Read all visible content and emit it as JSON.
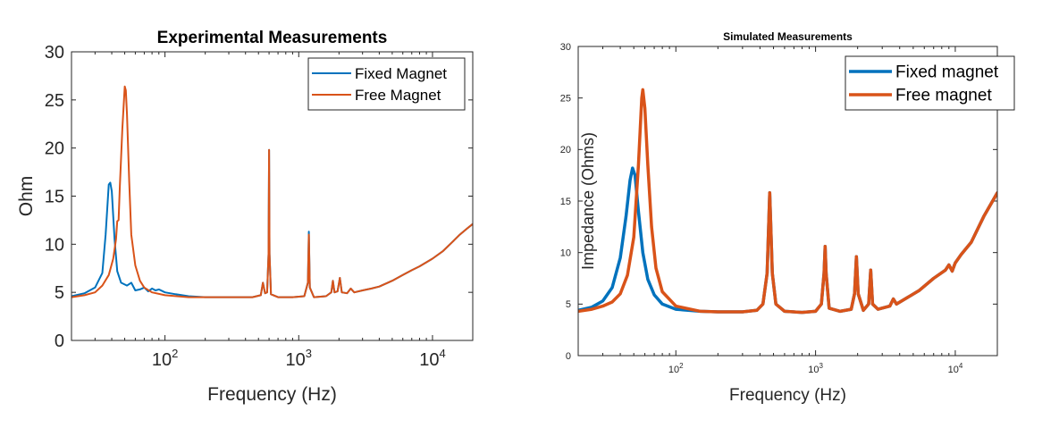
{
  "chart_data": [
    {
      "id": "experimental",
      "type": "line",
      "title": "Experimental Measurements",
      "xlabel": "Frequency (Hz)",
      "ylabel": "Ohm",
      "xscale": "log",
      "xlim": [
        20,
        20000
      ],
      "ylim": [
        0,
        30
      ],
      "yticks": [
        0,
        5,
        10,
        15,
        20,
        25,
        30
      ],
      "ytick_labels": [
        "0",
        "5",
        "10",
        "15",
        "20",
        "25",
        "30"
      ],
      "xticks": [
        100,
        1000,
        10000
      ],
      "xtick_base": [
        "10",
        "10",
        "10"
      ],
      "xtick_exp": [
        "2",
        "3",
        "4"
      ],
      "legend_position": "top-right",
      "series": [
        {
          "name": "Fixed Magnet",
          "color": "#0072BD",
          "points": [
            [
              20,
              4.6
            ],
            [
              25,
              4.9
            ],
            [
              30,
              5.5
            ],
            [
              34,
              7.0
            ],
            [
              36,
              11.0
            ],
            [
              38,
              16.2
            ],
            [
              39,
              16.4
            ],
            [
              40,
              15.5
            ],
            [
              42,
              10.5
            ],
            [
              44,
              7.2
            ],
            [
              47,
              6.0
            ],
            [
              52,
              5.7
            ],
            [
              56,
              6.0
            ],
            [
              60,
              5.2
            ],
            [
              65,
              5.3
            ],
            [
              70,
              5.5
            ],
            [
              75,
              5.1
            ],
            [
              80,
              5.4
            ],
            [
              85,
              5.2
            ],
            [
              90,
              5.3
            ],
            [
              100,
              5.0
            ],
            [
              120,
              4.8
            ],
            [
              150,
              4.6
            ],
            [
              200,
              4.5
            ],
            [
              300,
              4.5
            ],
            [
              450,
              4.5
            ],
            [
              520,
              4.7
            ],
            [
              540,
              6.0
            ],
            [
              560,
              4.9
            ],
            [
              580,
              5.0
            ],
            [
              595,
              9.0
            ],
            [
              600,
              19.8
            ],
            [
              605,
              9.0
            ],
            [
              620,
              4.8
            ],
            [
              700,
              4.5
            ],
            [
              900,
              4.5
            ],
            [
              1100,
              4.6
            ],
            [
              1170,
              6.0
            ],
            [
              1190,
              11.3
            ],
            [
              1210,
              5.5
            ],
            [
              1300,
              4.5
            ],
            [
              1600,
              4.6
            ],
            [
              1750,
              5.0
            ],
            [
              1800,
              6.2
            ],
            [
              1850,
              5.0
            ],
            [
              1950,
              5.1
            ],
            [
              2030,
              6.5
            ],
            [
              2100,
              5.0
            ],
            [
              2300,
              4.9
            ],
            [
              2450,
              5.4
            ],
            [
              2600,
              5.0
            ],
            [
              3000,
              5.2
            ],
            [
              3500,
              5.4
            ],
            [
              4000,
              5.6
            ],
            [
              5000,
              6.2
            ],
            [
              6000,
              6.8
            ],
            [
              7000,
              7.3
            ],
            [
              8000,
              7.7
            ],
            [
              10000,
              8.5
            ],
            [
              12000,
              9.3
            ],
            [
              14000,
              10.2
            ],
            [
              16000,
              11.0
            ],
            [
              18000,
              11.6
            ],
            [
              20000,
              12.1
            ]
          ]
        },
        {
          "name": "Free Magnet",
          "color": "#D95319",
          "points": [
            [
              20,
              4.5
            ],
            [
              25,
              4.7
            ],
            [
              30,
              5.0
            ],
            [
              34,
              5.7
            ],
            [
              38,
              6.8
            ],
            [
              41,
              8.5
            ],
            [
              43,
              10.5
            ],
            [
              44,
              12.4
            ],
            [
              45,
              12.5
            ],
            [
              46,
              16.0
            ],
            [
              48,
              22.0
            ],
            [
              50,
              26.4
            ],
            [
              51,
              26.0
            ],
            [
              52,
              23.5
            ],
            [
              54,
              16.5
            ],
            [
              56,
              11.0
            ],
            [
              60,
              7.8
            ],
            [
              65,
              6.2
            ],
            [
              70,
              5.5
            ],
            [
              80,
              5.0
            ],
            [
              100,
              4.7
            ],
            [
              150,
              4.5
            ],
            [
              200,
              4.5
            ],
            [
              300,
              4.5
            ],
            [
              450,
              4.5
            ],
            [
              520,
              4.7
            ],
            [
              540,
              6.0
            ],
            [
              560,
              4.9
            ],
            [
              580,
              5.0
            ],
            [
              595,
              9.0
            ],
            [
              600,
              19.8
            ],
            [
              605,
              9.0
            ],
            [
              620,
              4.8
            ],
            [
              700,
              4.5
            ],
            [
              900,
              4.5
            ],
            [
              1100,
              4.6
            ],
            [
              1170,
              6.0
            ],
            [
              1190,
              11.0
            ],
            [
              1210,
              5.5
            ],
            [
              1300,
              4.5
            ],
            [
              1600,
              4.6
            ],
            [
              1750,
              5.0
            ],
            [
              1800,
              6.2
            ],
            [
              1850,
              5.0
            ],
            [
              1950,
              5.1
            ],
            [
              2030,
              6.5
            ],
            [
              2100,
              5.0
            ],
            [
              2300,
              4.9
            ],
            [
              2450,
              5.4
            ],
            [
              2600,
              5.0
            ],
            [
              3000,
              5.2
            ],
            [
              3500,
              5.4
            ],
            [
              4000,
              5.6
            ],
            [
              5000,
              6.2
            ],
            [
              6000,
              6.8
            ],
            [
              7000,
              7.3
            ],
            [
              8000,
              7.7
            ],
            [
              10000,
              8.5
            ],
            [
              12000,
              9.3
            ],
            [
              14000,
              10.2
            ],
            [
              16000,
              11.0
            ],
            [
              18000,
              11.6
            ],
            [
              20000,
              12.1
            ]
          ]
        }
      ]
    },
    {
      "id": "simulated",
      "type": "line",
      "title": "Simulated Measurements",
      "xlabel": "Frequency (Hz)",
      "ylabel": "Impedance (Ohms)",
      "xscale": "log",
      "xlim": [
        20,
        20000
      ],
      "ylim": [
        0,
        30
      ],
      "yticks": [
        0,
        5,
        10,
        15,
        20,
        25,
        30
      ],
      "ytick_labels": [
        "0",
        "5",
        "10",
        "15",
        "20",
        "25",
        "30"
      ],
      "xticks": [
        100,
        1000,
        10000
      ],
      "xtick_base": [
        "10",
        "10",
        "10"
      ],
      "xtick_exp": [
        "2",
        "3",
        "4"
      ],
      "legend_position": "top-right",
      "series": [
        {
          "name": "Fixed magnet",
          "color": "#0072BD",
          "points": [
            [
              20,
              4.4
            ],
            [
              25,
              4.7
            ],
            [
              30,
              5.3
            ],
            [
              35,
              6.6
            ],
            [
              40,
              9.5
            ],
            [
              44,
              13.5
            ],
            [
              47,
              17.0
            ],
            [
              49,
              18.2
            ],
            [
              51,
              17.5
            ],
            [
              54,
              14.0
            ],
            [
              58,
              10.0
            ],
            [
              63,
              7.4
            ],
            [
              70,
              5.9
            ],
            [
              80,
              5.0
            ],
            [
              100,
              4.5
            ],
            [
              150,
              4.3
            ],
            [
              200,
              4.25
            ],
            [
              300,
              4.25
            ],
            [
              380,
              4.4
            ],
            [
              420,
              5.0
            ],
            [
              450,
              8.0
            ],
            [
              470,
              15.8
            ],
            [
              490,
              8.0
            ],
            [
              520,
              5.0
            ],
            [
              600,
              4.3
            ],
            [
              800,
              4.2
            ],
            [
              1000,
              4.3
            ],
            [
              1100,
              5.0
            ],
            [
              1150,
              8.0
            ],
            [
              1170,
              10.6
            ],
            [
              1190,
              8.0
            ],
            [
              1250,
              4.6
            ],
            [
              1500,
              4.3
            ],
            [
              1800,
              4.5
            ],
            [
              1900,
              6.0
            ],
            [
              1960,
              9.6
            ],
            [
              2020,
              6.0
            ],
            [
              2200,
              4.4
            ],
            [
              2400,
              5.0
            ],
            [
              2480,
              8.3
            ],
            [
              2560,
              5.0
            ],
            [
              2800,
              4.5
            ],
            [
              3400,
              4.8
            ],
            [
              3600,
              5.5
            ],
            [
              3800,
              5.0
            ],
            [
              4500,
              5.6
            ],
            [
              5500,
              6.3
            ],
            [
              7000,
              7.5
            ],
            [
              8500,
              8.3
            ],
            [
              9000,
              8.8
            ],
            [
              9500,
              8.2
            ],
            [
              10000,
              9.0
            ],
            [
              11000,
              9.8
            ],
            [
              13000,
              11.0
            ],
            [
              16000,
              13.5
            ],
            [
              20000,
              15.8
            ]
          ]
        },
        {
          "name": "Free magnet",
          "color": "#D95319",
          "points": [
            [
              20,
              4.3
            ],
            [
              25,
              4.5
            ],
            [
              30,
              4.8
            ],
            [
              35,
              5.2
            ],
            [
              40,
              6.0
            ],
            [
              45,
              7.8
            ],
            [
              50,
              11.5
            ],
            [
              54,
              18.5
            ],
            [
              57,
              25.0
            ],
            [
              58,
              25.8
            ],
            [
              60,
              24.0
            ],
            [
              63,
              18.5
            ],
            [
              67,
              12.5
            ],
            [
              72,
              8.5
            ],
            [
              80,
              6.2
            ],
            [
              100,
              4.8
            ],
            [
              150,
              4.3
            ],
            [
              200,
              4.25
            ],
            [
              300,
              4.25
            ],
            [
              380,
              4.4
            ],
            [
              420,
              5.0
            ],
            [
              450,
              8.0
            ],
            [
              470,
              15.8
            ],
            [
              490,
              8.0
            ],
            [
              520,
              5.0
            ],
            [
              600,
              4.3
            ],
            [
              800,
              4.2
            ],
            [
              1000,
              4.3
            ],
            [
              1100,
              5.0
            ],
            [
              1150,
              8.0
            ],
            [
              1170,
              10.6
            ],
            [
              1190,
              8.0
            ],
            [
              1250,
              4.6
            ],
            [
              1500,
              4.3
            ],
            [
              1800,
              4.5
            ],
            [
              1900,
              6.0
            ],
            [
              1960,
              9.6
            ],
            [
              2020,
              6.0
            ],
            [
              2200,
              4.4
            ],
            [
              2400,
              5.0
            ],
            [
              2480,
              8.3
            ],
            [
              2560,
              5.0
            ],
            [
              2800,
              4.5
            ],
            [
              3400,
              4.8
            ],
            [
              3600,
              5.5
            ],
            [
              3800,
              5.0
            ],
            [
              4500,
              5.6
            ],
            [
              5500,
              6.3
            ],
            [
              7000,
              7.5
            ],
            [
              8500,
              8.3
            ],
            [
              9000,
              8.8
            ],
            [
              9500,
              8.2
            ],
            [
              10000,
              9.0
            ],
            [
              11000,
              9.8
            ],
            [
              13000,
              11.0
            ],
            [
              16000,
              13.5
            ],
            [
              20000,
              15.8
            ]
          ]
        }
      ]
    }
  ]
}
